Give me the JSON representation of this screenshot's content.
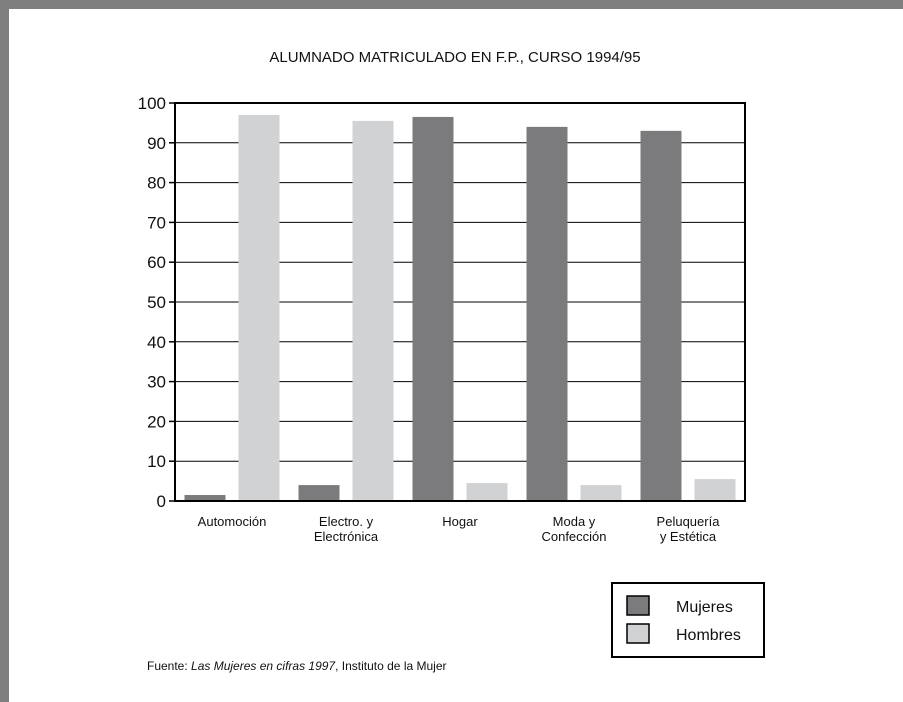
{
  "chart_data": {
    "type": "bar",
    "title": "ALUMNADO MATRICULADO EN F.P., CURSO 1994/95",
    "categories": [
      [
        "Automoción"
      ],
      [
        "Electro. y",
        "Electrónica"
      ],
      [
        "Hogar"
      ],
      [
        "Moda y",
        "Confección"
      ],
      [
        "Peluquería",
        "y Estética"
      ]
    ],
    "series": [
      {
        "name": "Mujeres",
        "color": "#7b7b7e",
        "values": [
          1.5,
          4,
          96.5,
          94,
          93
        ]
      },
      {
        "name": "Hombres",
        "color": "#d1d2d4",
        "values": [
          97,
          95.5,
          4.5,
          4,
          5.5
        ]
      }
    ],
    "ylim": [
      0,
      100
    ],
    "yticks": [
      0,
      10,
      20,
      30,
      40,
      50,
      60,
      70,
      80,
      90,
      100
    ],
    "grid": true,
    "legend_position": "bottom-right"
  },
  "source": {
    "prefix": "Fuente: ",
    "work": "Las Mujeres en cifras 1997",
    "suffix": ", Instituto de la Mujer"
  }
}
